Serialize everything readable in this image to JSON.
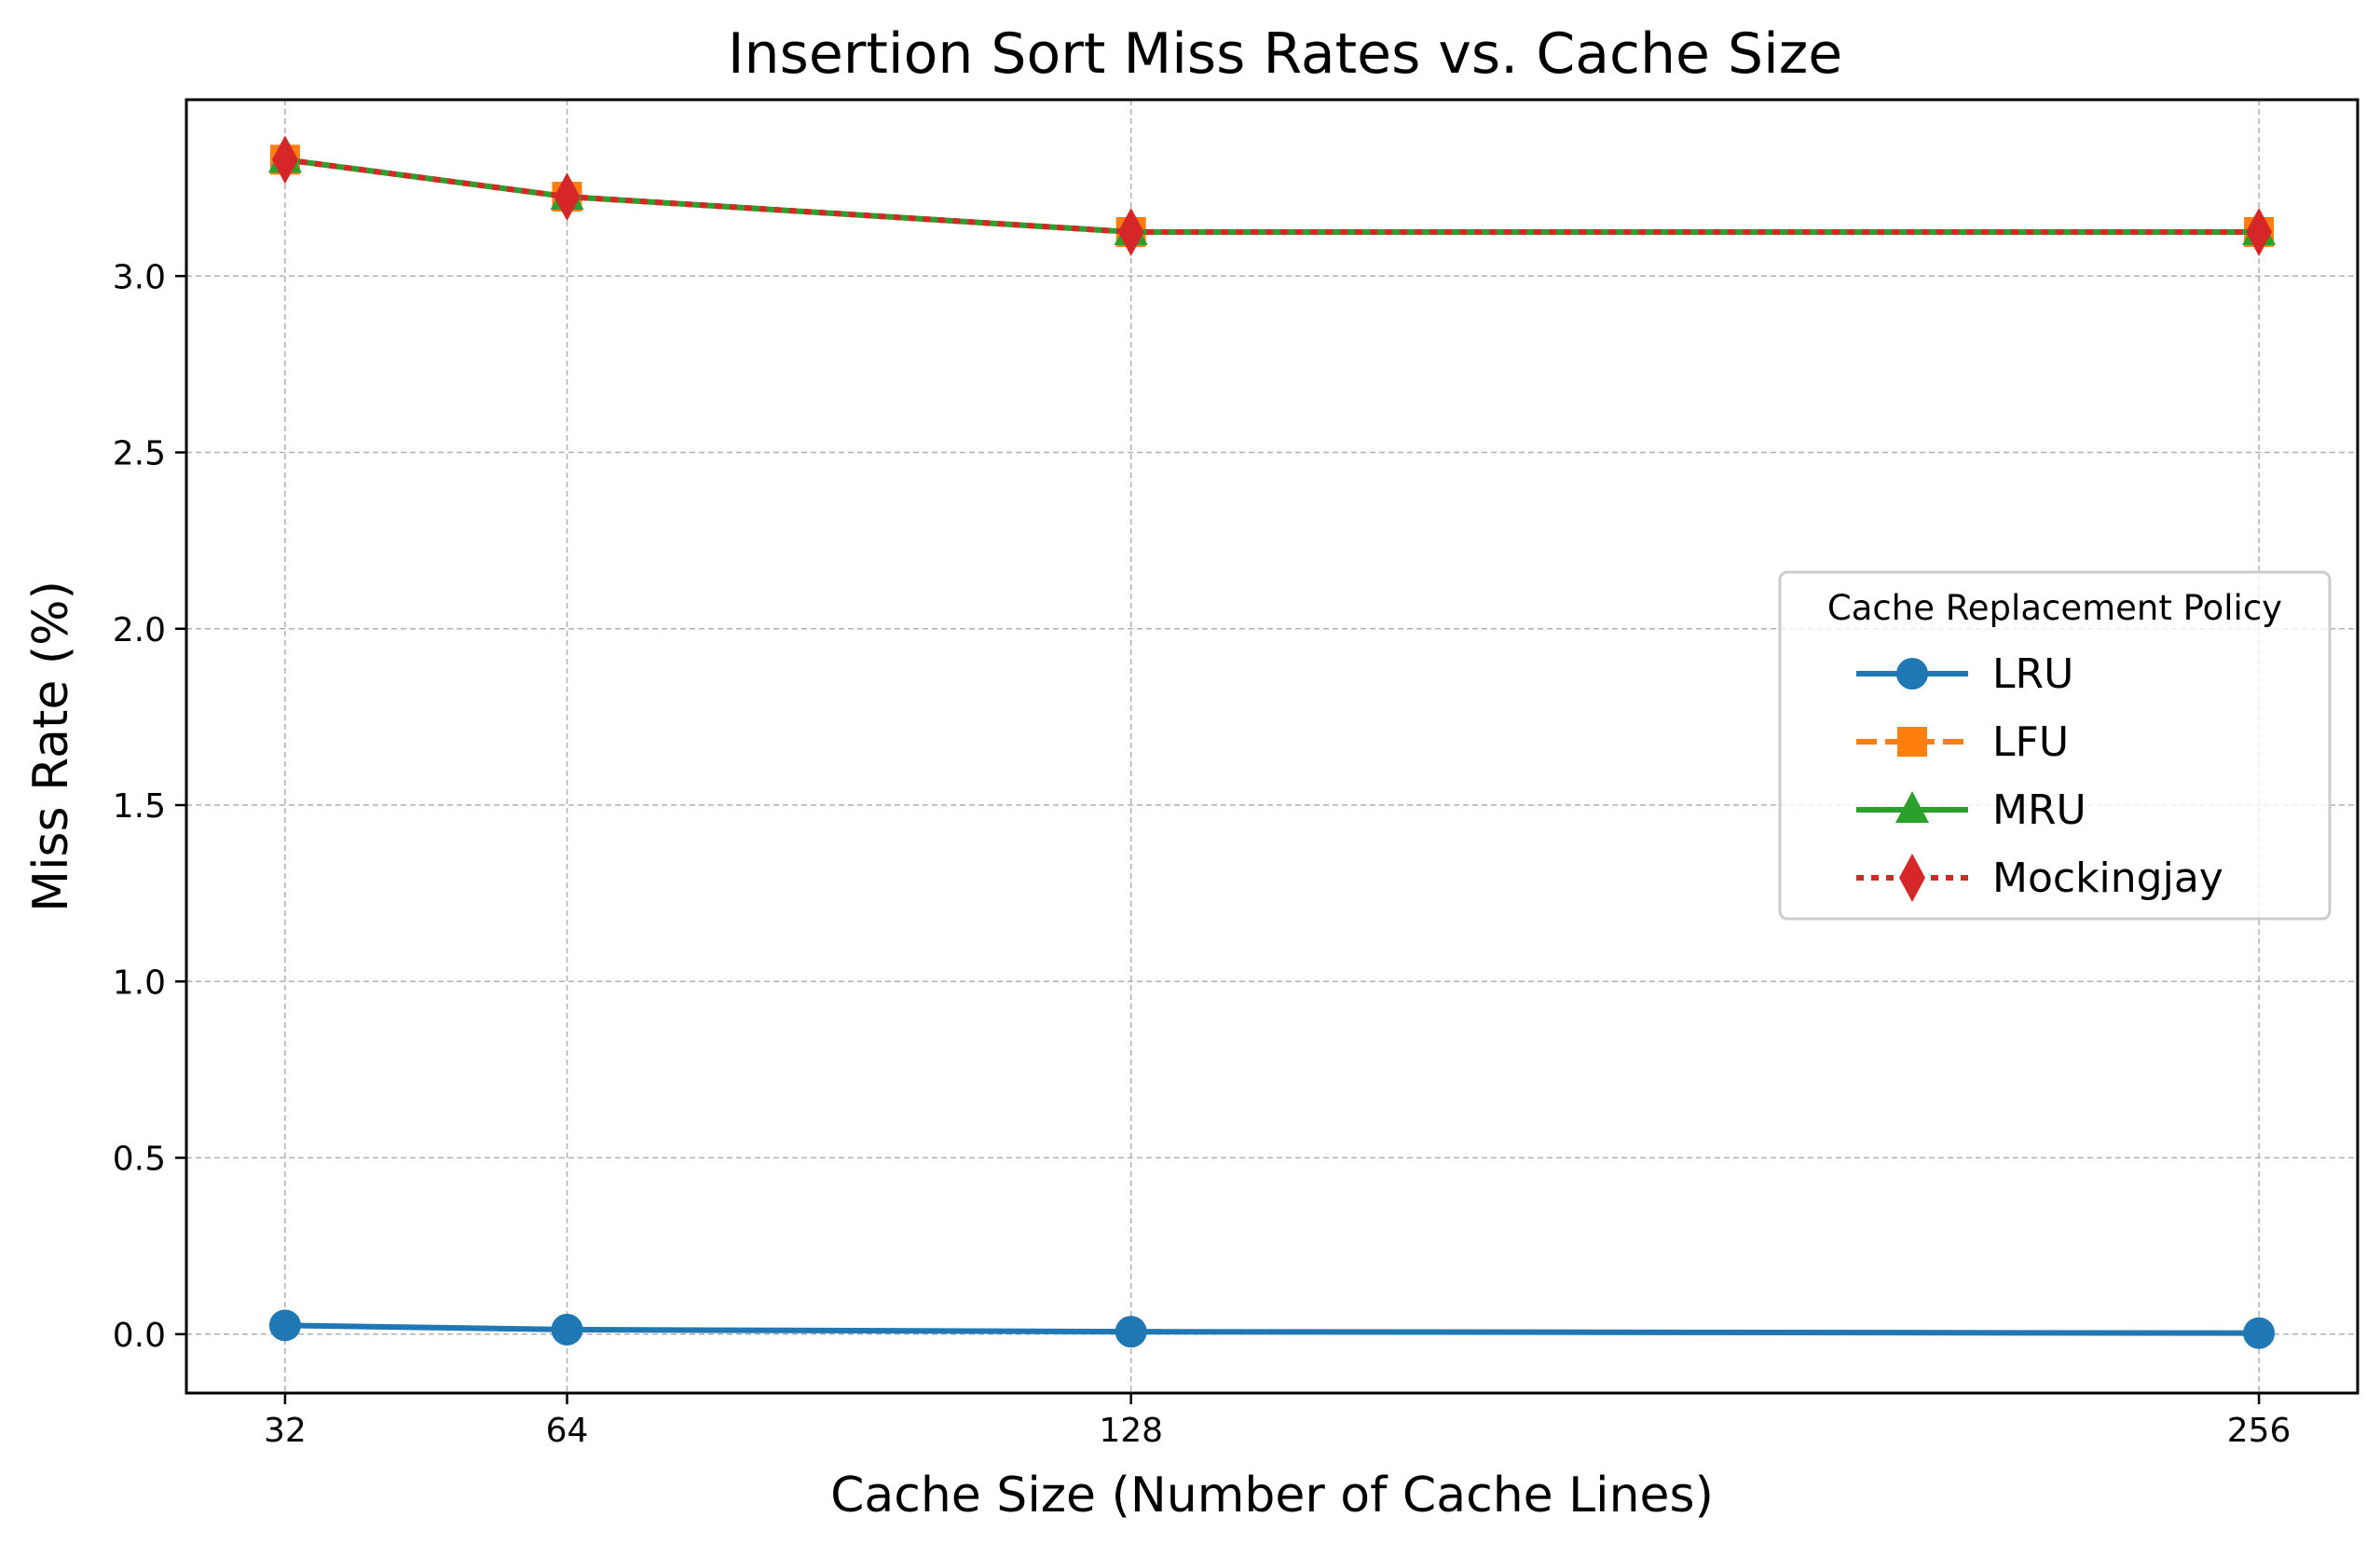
{
  "chart_data": {
    "type": "line",
    "title": "Insertion Sort Miss Rates vs. Cache Size",
    "xlabel": "Cache Size (Number of Cache Lines)",
    "ylabel": "Miss Rate (%)",
    "x": [
      32,
      64,
      128,
      256
    ],
    "x_ticks": [
      "32",
      "64",
      "128",
      "256"
    ],
    "xlim": [
      20.8,
      267.2
    ],
    "ylim": [
      -0.167,
      3.5
    ],
    "y_ticks": [
      "0.0",
      "0.5",
      "1.0",
      "1.5",
      "2.0",
      "2.5",
      "3.0"
    ],
    "grid": true,
    "legend": {
      "title": "Cache Replacement Policy",
      "placement": "center-right"
    },
    "series": [
      {
        "name": "LRU",
        "values": [
          0.025,
          0.013,
          0.007,
          0.003
        ],
        "color": "#1f77b4",
        "marker": "circle",
        "linestyle": "solid"
      },
      {
        "name": "LFU",
        "values": [
          3.33,
          3.225,
          3.125,
          3.125
        ],
        "color": "#ff7f0e",
        "marker": "square",
        "linestyle": "dashed"
      },
      {
        "name": "MRU",
        "values": [
          3.33,
          3.225,
          3.125,
          3.125
        ],
        "color": "#2ca02c",
        "marker": "triangle",
        "linestyle": "solid"
      },
      {
        "name": "Mockingjay",
        "values": [
          3.33,
          3.225,
          3.125,
          3.125
        ],
        "color": "#d62728",
        "marker": "diamond",
        "linestyle": "dotted"
      }
    ]
  }
}
